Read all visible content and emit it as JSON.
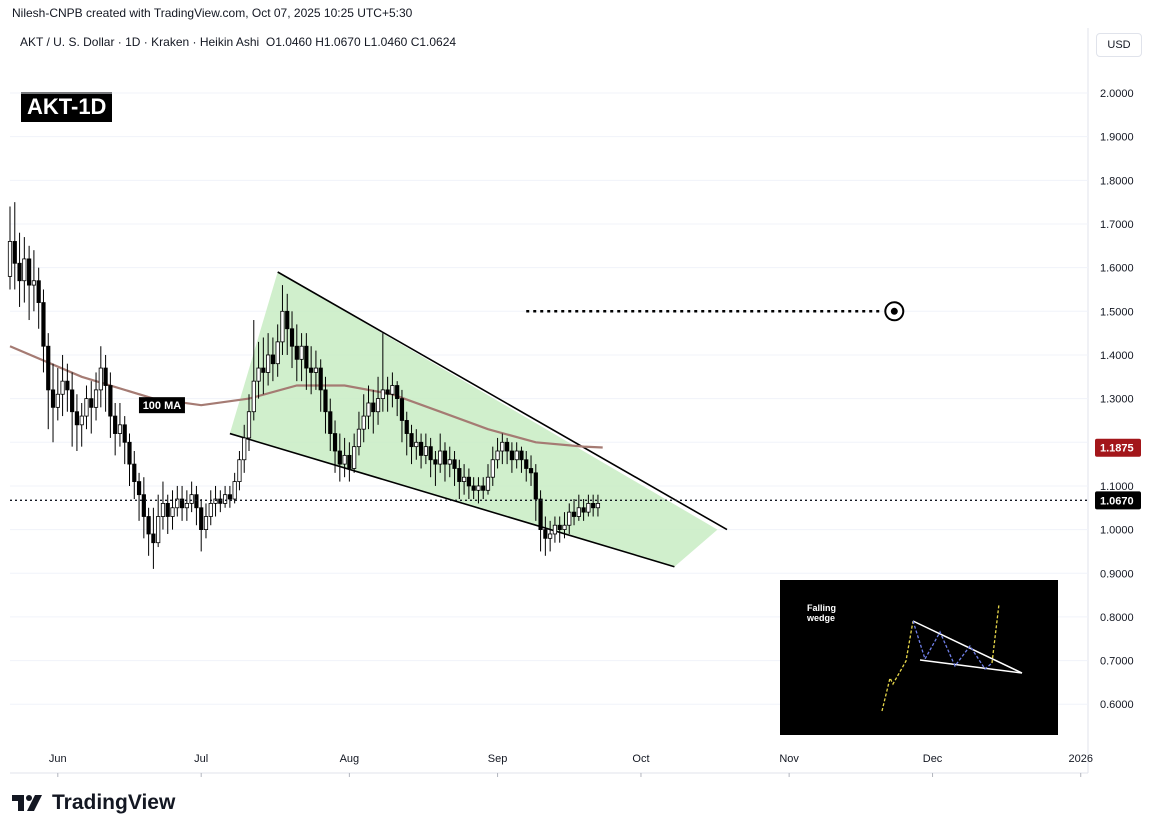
{
  "header": {
    "credit": "Nilesh-CNPB created with TradingView.com, Oct 07, 2025 10:25 UTC+5:30",
    "symbol": "AKT / U. S. Dollar · 1D · Kraken · Heikin Ashi",
    "open": "O1.0460",
    "high": "H1.0670",
    "low": "L1.0460",
    "close": "C1.0624",
    "ticker_badge": "AKT-1D",
    "currency": "USD"
  },
  "footer": {
    "logo_text": "TradingView",
    "logo_icon": "tradingview-logo-icon"
  },
  "colors": {
    "bull": "#ffffff",
    "bear": "#000000",
    "wick": "#000000",
    "ma": "#a57b73",
    "wedge_fill": "#c8ecc3",
    "wedge_line": "#000000",
    "ma_badge": "#a3161a",
    "price_badge": "#000000"
  },
  "chart_data": {
    "type": "candlestick",
    "title": "AKT / U. S. Dollar · 1D · Kraken · Heikin Ashi",
    "xlabel": "",
    "ylabel": "",
    "ylim": [
      0.52,
      2.1
    ],
    "x_range": [
      "2025-05-22",
      "2026-01-03"
    ],
    "y_ticks": [
      "2.0000",
      "1.9000",
      "1.8000",
      "1.7000",
      "1.6000",
      "1.5000",
      "1.4000",
      "1.3000",
      "1.2000",
      "1.1000",
      "1.0000",
      "0.9000",
      "0.8000",
      "0.7000",
      "0.6000"
    ],
    "y_tick_values": [
      2.0,
      1.9,
      1.8,
      1.7,
      1.6,
      1.5,
      1.4,
      1.3,
      1.2,
      1.1,
      1.0,
      0.9,
      0.8,
      0.7,
      0.6
    ],
    "x_ticks": [
      {
        "label": "Jun",
        "date": "2025-06-01"
      },
      {
        "label": "Jul",
        "date": "2025-07-01"
      },
      {
        "label": "Aug",
        "date": "2025-08-01"
      },
      {
        "label": "Sep",
        "date": "2025-09-01"
      },
      {
        "label": "Oct",
        "date": "2025-10-01"
      },
      {
        "label": "Nov",
        "date": "2025-11-01"
      },
      {
        "label": "Dec",
        "date": "2025-12-01"
      },
      {
        "label": "2026",
        "date": "2026-01-01"
      }
    ],
    "candle_start_date": "2025-05-22",
    "candles": [
      [
        1.58,
        1.66,
        1.74,
        1.55
      ],
      [
        1.66,
        1.61,
        1.75,
        1.55
      ],
      [
        1.61,
        1.57,
        1.68,
        1.51
      ],
      [
        1.57,
        1.62,
        1.67,
        1.52
      ],
      [
        1.62,
        1.56,
        1.65,
        1.48
      ],
      [
        1.56,
        1.57,
        1.64,
        1.5
      ],
      [
        1.57,
        1.52,
        1.6,
        1.46
      ],
      [
        1.52,
        1.42,
        1.55,
        1.36
      ],
      [
        1.42,
        1.32,
        1.45,
        1.23
      ],
      [
        1.32,
        1.28,
        1.38,
        1.2
      ],
      [
        1.28,
        1.31,
        1.37,
        1.25
      ],
      [
        1.31,
        1.34,
        1.4,
        1.26
      ],
      [
        1.34,
        1.32,
        1.38,
        1.27
      ],
      [
        1.32,
        1.27,
        1.36,
        1.19
      ],
      [
        1.27,
        1.24,
        1.31,
        1.18
      ],
      [
        1.24,
        1.26,
        1.29,
        1.19
      ],
      [
        1.26,
        1.3,
        1.33,
        1.23
      ],
      [
        1.3,
        1.28,
        1.34,
        1.22
      ],
      [
        1.28,
        1.32,
        1.36,
        1.25
      ],
      [
        1.32,
        1.37,
        1.42,
        1.28
      ],
      [
        1.37,
        1.33,
        1.4,
        1.27
      ],
      [
        1.33,
        1.26,
        1.36,
        1.21
      ],
      [
        1.26,
        1.22,
        1.29,
        1.17
      ],
      [
        1.22,
        1.24,
        1.29,
        1.19
      ],
      [
        1.24,
        1.2,
        1.26,
        1.15
      ],
      [
        1.2,
        1.15,
        1.22,
        1.1
      ],
      [
        1.15,
        1.11,
        1.18,
        1.07
      ],
      [
        1.11,
        1.08,
        1.13,
        1.02
      ],
      [
        1.08,
        1.03,
        1.12,
        0.98
      ],
      [
        1.03,
        0.99,
        1.05,
        0.94
      ],
      [
        0.99,
        0.97,
        1.05,
        0.91
      ],
      [
        0.97,
        1.03,
        1.08,
        0.96
      ],
      [
        1.03,
        1.06,
        1.11,
        1.0
      ],
      [
        1.06,
        1.03,
        1.08,
        0.99
      ],
      [
        1.03,
        1.05,
        1.09,
        1.0
      ],
      [
        1.05,
        1.07,
        1.1,
        1.03
      ],
      [
        1.07,
        1.05,
        1.1,
        1.02
      ],
      [
        1.05,
        1.06,
        1.09,
        1.02
      ],
      [
        1.06,
        1.08,
        1.11,
        1.04
      ],
      [
        1.08,
        1.05,
        1.1,
        1.01
      ],
      [
        1.05,
        1.0,
        1.07,
        0.95
      ],
      [
        1.0,
        1.03,
        1.06,
        0.98
      ],
      [
        1.03,
        1.06,
        1.09,
        1.01
      ],
      [
        1.06,
        1.07,
        1.1,
        1.03
      ],
      [
        1.07,
        1.06,
        1.09,
        1.04
      ],
      [
        1.06,
        1.08,
        1.1,
        1.05
      ],
      [
        1.08,
        1.07,
        1.1,
        1.05
      ],
      [
        1.07,
        1.11,
        1.13,
        1.06
      ],
      [
        1.11,
        1.16,
        1.18,
        1.09
      ],
      [
        1.16,
        1.21,
        1.24,
        1.13
      ],
      [
        1.21,
        1.27,
        1.31,
        1.18
      ],
      [
        1.27,
        1.34,
        1.48,
        1.25
      ],
      [
        1.34,
        1.37,
        1.43,
        1.3
      ],
      [
        1.37,
        1.36,
        1.44,
        1.31
      ],
      [
        1.36,
        1.4,
        1.45,
        1.33
      ],
      [
        1.4,
        1.38,
        1.44,
        1.34
      ],
      [
        1.38,
        1.43,
        1.47,
        1.35
      ],
      [
        1.43,
        1.5,
        1.56,
        1.4
      ],
      [
        1.5,
        1.46,
        1.54,
        1.4
      ],
      [
        1.46,
        1.42,
        1.5,
        1.37
      ],
      [
        1.42,
        1.39,
        1.47,
        1.34
      ],
      [
        1.39,
        1.42,
        1.45,
        1.34
      ],
      [
        1.42,
        1.37,
        1.45,
        1.32
      ],
      [
        1.37,
        1.36,
        1.42,
        1.31
      ],
      [
        1.36,
        1.37,
        1.41,
        1.32
      ],
      [
        1.37,
        1.32,
        1.39,
        1.27
      ],
      [
        1.32,
        1.27,
        1.35,
        1.22
      ],
      [
        1.27,
        1.22,
        1.3,
        1.18
      ],
      [
        1.22,
        1.18,
        1.25,
        1.13
      ],
      [
        1.18,
        1.15,
        1.22,
        1.11
      ],
      [
        1.15,
        1.17,
        1.21,
        1.12
      ],
      [
        1.17,
        1.14,
        1.2,
        1.11
      ],
      [
        1.14,
        1.19,
        1.22,
        1.13
      ],
      [
        1.19,
        1.23,
        1.27,
        1.17
      ],
      [
        1.23,
        1.26,
        1.31,
        1.2
      ],
      [
        1.26,
        1.29,
        1.33,
        1.23
      ],
      [
        1.29,
        1.27,
        1.32,
        1.22
      ],
      [
        1.27,
        1.3,
        1.35,
        1.24
      ],
      [
        1.3,
        1.32,
        1.45,
        1.27
      ],
      [
        1.32,
        1.31,
        1.35,
        1.27
      ],
      [
        1.31,
        1.33,
        1.36,
        1.28
      ],
      [
        1.33,
        1.3,
        1.34,
        1.26
      ],
      [
        1.3,
        1.25,
        1.32,
        1.2
      ],
      [
        1.25,
        1.22,
        1.27,
        1.17
      ],
      [
        1.22,
        1.19,
        1.24,
        1.15
      ],
      [
        1.19,
        1.2,
        1.23,
        1.16
      ],
      [
        1.2,
        1.17,
        1.22,
        1.14
      ],
      [
        1.17,
        1.19,
        1.22,
        1.15
      ],
      [
        1.19,
        1.16,
        1.21,
        1.12
      ],
      [
        1.16,
        1.15,
        1.18,
        1.1
      ],
      [
        1.15,
        1.18,
        1.22,
        1.13
      ],
      [
        1.18,
        1.15,
        1.2,
        1.11
      ],
      [
        1.15,
        1.16,
        1.19,
        1.12
      ],
      [
        1.16,
        1.14,
        1.18,
        1.1
      ],
      [
        1.14,
        1.11,
        1.16,
        1.07
      ],
      [
        1.11,
        1.12,
        1.15,
        1.08
      ],
      [
        1.12,
        1.1,
        1.14,
        1.07
      ],
      [
        1.1,
        1.09,
        1.12,
        1.07
      ],
      [
        1.09,
        1.1,
        1.12,
        1.06
      ],
      [
        1.1,
        1.09,
        1.12,
        1.07
      ],
      [
        1.09,
        1.12,
        1.15,
        1.08
      ],
      [
        1.12,
        1.16,
        1.19,
        1.1
      ],
      [
        1.16,
        1.18,
        1.21,
        1.14
      ],
      [
        1.18,
        1.2,
        1.22,
        1.15
      ],
      [
        1.2,
        1.18,
        1.21,
        1.15
      ],
      [
        1.18,
        1.16,
        1.2,
        1.13
      ],
      [
        1.16,
        1.18,
        1.2,
        1.14
      ],
      [
        1.18,
        1.16,
        1.19,
        1.13
      ],
      [
        1.16,
        1.14,
        1.18,
        1.11
      ],
      [
        1.14,
        1.13,
        1.17,
        1.1
      ],
      [
        1.13,
        1.07,
        1.15,
        1.02
      ],
      [
        1.07,
        1.0,
        1.09,
        0.95
      ],
      [
        1.0,
        0.98,
        1.03,
        0.94
      ],
      [
        0.98,
        0.99,
        1.02,
        0.95
      ],
      [
        0.99,
        1.01,
        1.03,
        0.97
      ],
      [
        1.01,
        1.0,
        1.03,
        0.97
      ],
      [
        1.0,
        1.01,
        1.04,
        0.98
      ],
      [
        1.01,
        1.04,
        1.06,
        0.99
      ],
      [
        1.04,
        1.03,
        1.07,
        1.01
      ],
      [
        1.03,
        1.05,
        1.08,
        1.02
      ],
      [
        1.05,
        1.04,
        1.07,
        1.02
      ],
      [
        1.04,
        1.06,
        1.08,
        1.03
      ],
      [
        1.06,
        1.05,
        1.08,
        1.03
      ],
      [
        1.05,
        1.06,
        1.08,
        1.03
      ]
    ],
    "ma": {
      "name": "100 MA",
      "points": [
        [
          0,
          1.42
        ],
        [
          15,
          1.35
        ],
        [
          30,
          1.3
        ],
        [
          40,
          1.285
        ],
        [
          50,
          1.3
        ],
        [
          60,
          1.33
        ],
        [
          70,
          1.33
        ],
        [
          80,
          1.31
        ],
        [
          90,
          1.27
        ],
        [
          100,
          1.23
        ],
        [
          110,
          1.2
        ],
        [
          120,
          1.19
        ],
        [
          124,
          1.188
        ]
      ]
    },
    "wedge": {
      "upper": [
        [
          "2025-07-17",
          1.59
        ],
        [
          "2025-10-19",
          1.0
        ]
      ],
      "lower": [
        [
          "2025-07-07",
          1.22
        ],
        [
          "2025-10-08",
          0.915
        ]
      ],
      "fill": [
        [
          "2025-07-07",
          1.22
        ],
        [
          "2025-07-17",
          1.59
        ],
        [
          "2025-10-17",
          1.0
        ],
        [
          "2025-10-08",
          0.915
        ]
      ]
    },
    "target": {
      "from": "2025-09-07",
      "to": "2025-11-23",
      "value": 1.5
    },
    "current_price": {
      "value": 1.067,
      "label": "1.0670"
    },
    "ma_value": {
      "value": 1.1875,
      "label": "1.1875"
    },
    "annotations": {
      "ma_label": "100 MA",
      "inset_title": "Falling\nwedge"
    }
  }
}
